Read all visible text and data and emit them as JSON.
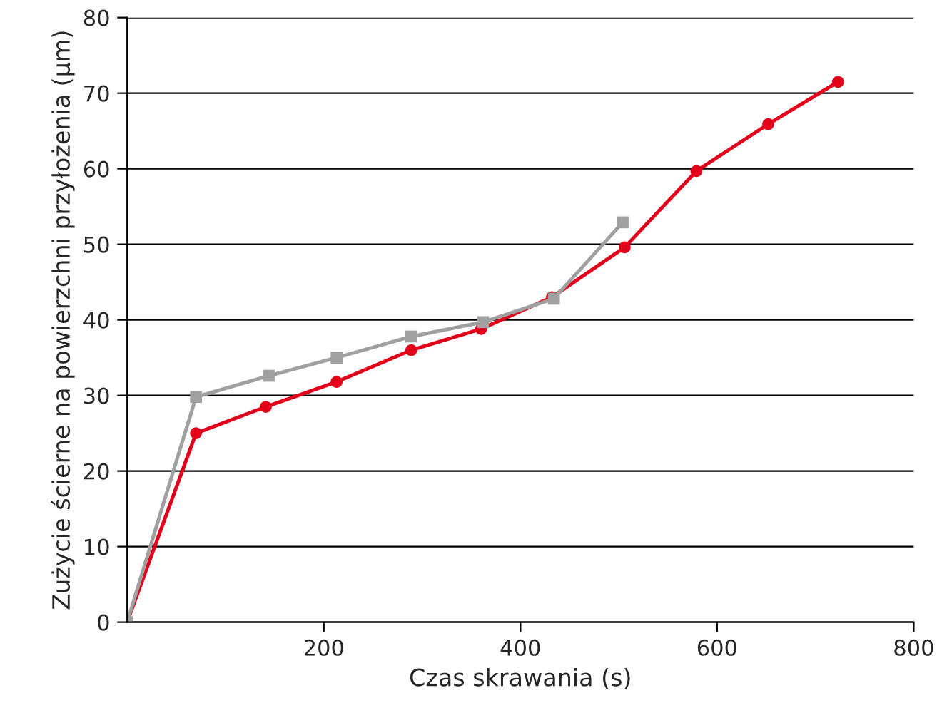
{
  "chart_data": {
    "type": "line",
    "xlabel": "Czas skrawania (s)",
    "ylabel": "Zużycie ścierne na powierzchni przyłożenia (µm)",
    "xlim": [
      0,
      800
    ],
    "xticks": [
      200,
      400,
      600,
      800
    ],
    "ylim": [
      0,
      80
    ],
    "yticks": [
      0,
      10,
      20,
      30,
      40,
      50,
      60,
      70,
      80
    ],
    "grid": "y",
    "series": [
      {
        "color": "#e2001a",
        "marker": "circle",
        "x": [
          0,
          70,
          141,
          213,
          289,
          360,
          432,
          506,
          579,
          652,
          723
        ],
        "values": [
          0,
          25,
          28.5,
          31.8,
          36,
          38.8,
          43,
          49.6,
          59.7,
          65.9,
          71.5
        ]
      },
      {
        "color": "#a0a0a0",
        "marker": "square",
        "x": [
          0,
          70,
          144,
          213,
          289,
          362,
          434,
          504
        ],
        "values": [
          0,
          29.8,
          32.6,
          35,
          37.8,
          39.7,
          42.8,
          52.9
        ]
      }
    ]
  }
}
